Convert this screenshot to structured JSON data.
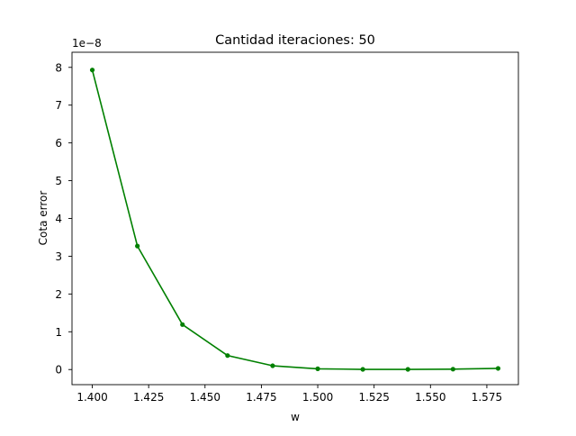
{
  "chart_data": {
    "type": "line",
    "title": "Cantidad iteraciones: 50",
    "xlabel": "w",
    "ylabel": "Cota error",
    "y_offset_label": "1e−8",
    "xlim": [
      1.391,
      1.589
    ],
    "ylim": [
      -0.4,
      8.4
    ],
    "y_multiplier": 1e-08,
    "x_ticks": [
      1.4,
      1.425,
      1.45,
      1.475,
      1.5,
      1.525,
      1.55,
      1.575
    ],
    "x_tick_labels": [
      "1.400",
      "1.425",
      "1.450",
      "1.475",
      "1.500",
      "1.525",
      "1.550",
      "1.575"
    ],
    "y_ticks": [
      0,
      1,
      2,
      3,
      4,
      5,
      6,
      7,
      8
    ],
    "y_tick_labels": [
      "0",
      "1",
      "2",
      "3",
      "4",
      "5",
      "6",
      "7",
      "8"
    ],
    "grid": false,
    "series": [
      {
        "color": "#008000",
        "marker": "circle",
        "x": [
          1.4,
          1.42,
          1.44,
          1.46,
          1.48,
          1.5,
          1.52,
          1.54,
          1.56,
          1.58
        ],
        "y": [
          7.93,
          3.27,
          1.19,
          0.37,
          0.1,
          0.02,
          0.005,
          0.005,
          0.01,
          0.03
        ]
      }
    ]
  }
}
